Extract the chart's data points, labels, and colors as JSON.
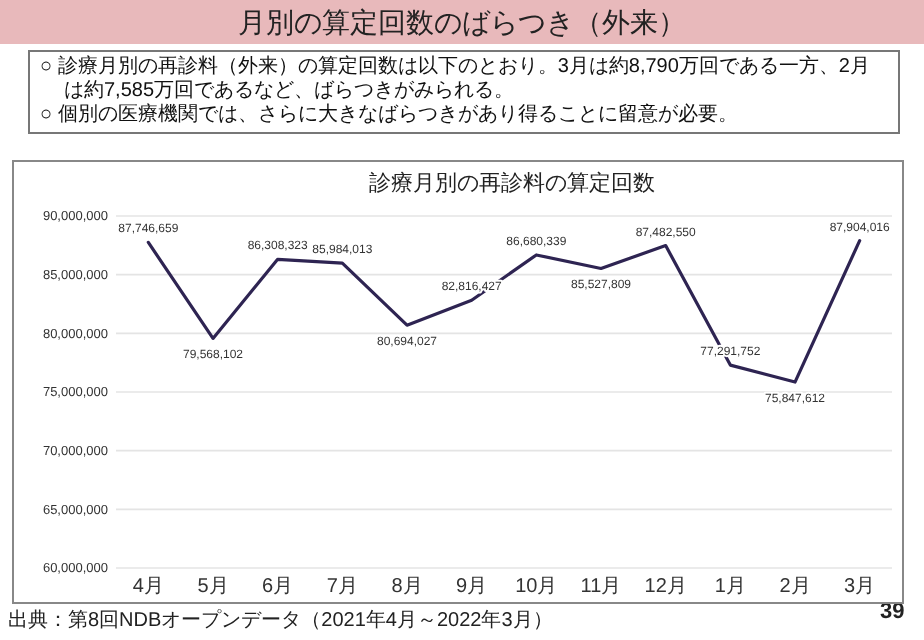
{
  "chart_data": {
    "type": "line",
    "title": "診療月別の再診料の算定回数",
    "annotations": [
      "月別の算定回数のばらつき（外来）",
      "○ 診療月別の再診料（外来）の算定回数は以下のとおり。3月は約8,790万回である一方、2月は約7,585万回であるなど、ばらつきがみられる。",
      "○ 個別の医療機関では、さらに大きなばらつきがあり得ることに留意が必要。",
      "出典：第8回NDBオープンデータ（2021年4月～2022年3月）",
      "39"
    ],
    "categories": [
      "4月",
      "5月",
      "6月",
      "7月",
      "8月",
      "9月",
      "10月",
      "11月",
      "12月",
      "1月",
      "2月",
      "3月"
    ],
    "series": [
      {
        "color": "#2e2452",
        "values": [
          87746659,
          79568102,
          86308323,
          85984013,
          80694027,
          82816427,
          86680339,
          85527809,
          87482550,
          77291752,
          75847612,
          87904016
        ],
        "value_labels": [
          "87,746,659",
          "79,568,102",
          "86,308,323",
          "85,984,013",
          "80,694,027",
          "82,816,427",
          "86,680,339",
          "85,527,809",
          "87,482,550",
          "77,291,752",
          "75,847,612",
          "87,904,016"
        ]
      }
    ],
    "ylim": [
      60000000,
      90000000
    ],
    "yticks": [
      {
        "value": 60000000,
        "label": "60,000,000"
      },
      {
        "value": 65000000,
        "label": "65,000,000"
      },
      {
        "value": 70000000,
        "label": "70,000,000"
      },
      {
        "value": 75000000,
        "label": "75,000,000"
      },
      {
        "value": 80000000,
        "label": "80,000,000"
      },
      {
        "value": 85000000,
        "label": "85,000,000"
      },
      {
        "value": 90000000,
        "label": "90,000,000"
      }
    ],
    "grid": "y",
    "marker": "none",
    "line_style": "solid"
  }
}
